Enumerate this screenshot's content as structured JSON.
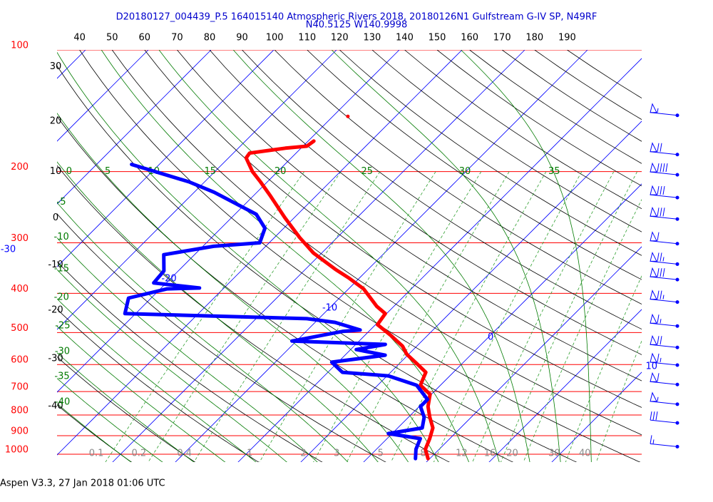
{
  "chart_data": {
    "type": "skewt",
    "title": "D20180127_004439_P.5 164015140 Atmospheric Rivers 2018, 20180126N1 Gulfstream G-IV SP, N49RF",
    "subtitle": "N40.5125 W140.9998",
    "footer": "Aspen V3.3, 27 Jan 2018  01:06 UTC",
    "ylim": [
      100,
      1000
    ],
    "ylog": true,
    "yticks": [
      100,
      200,
      300,
      400,
      500,
      600,
      700,
      800,
      900,
      1000
    ],
    "grid": true,
    "grid_color": "#ff0000",
    "isotherms": [
      -110,
      -100,
      -90,
      -80,
      -70,
      -60,
      -50,
      -40,
      -30,
      -20,
      -10,
      0,
      10,
      20,
      30
    ],
    "isotherm_color": "#0000ff",
    "dry_adiabats": [
      -40,
      -30,
      -20,
      -10,
      0,
      10,
      20,
      30,
      40,
      50,
      60,
      70,
      80,
      90,
      100,
      110,
      120,
      130,
      140,
      150,
      160,
      170,
      180,
      190
    ],
    "dry_adiabat_color": "#000000",
    "moist_adiabats": [
      -40,
      -35,
      -30,
      -25,
      -20,
      -15,
      -10,
      -5,
      0,
      5,
      10,
      15,
      20,
      25,
      30,
      35
    ],
    "moist_adiabat_color": "#007a00",
    "mixing_ratios": [
      0.1,
      0.2,
      0.4,
      1,
      2,
      3,
      5,
      8,
      12,
      16,
      20,
      30,
      40
    ],
    "mixing_ratio_color": "#2e9e2e",
    "series": [
      {
        "color": "#ff0000",
        "x": [
          1025,
          972,
          915,
          861,
          810,
          762,
          711,
          675,
          627,
          597,
          566,
          540,
          508,
          478,
          449,
          431,
          390,
          367,
          349,
          318,
          291,
          260,
          230,
          212,
          200,
          185,
          180,
          175,
          173,
          168,
          160,
          146
        ],
        "values": [
          9.7,
          7.8,
          6.8,
          5.6,
          3.4,
          1.4,
          -0.2,
          -3.2,
          -4.4,
          -7.2,
          -10.3,
          -12.3,
          -15.9,
          -19.7,
          -20.2,
          -22.7,
          -27.6,
          -31.6,
          -35.2,
          -41.3,
          -46.0,
          -51.5,
          -57.2,
          -61.1,
          -64.0,
          -67.2,
          -67.4,
          -62.5,
          -59.4,
          -59.1,
          null,
          -57.6
        ]
      },
      {
        "color": "#0000ff",
        "x": [
          1025,
          972,
          915,
          889,
          861,
          810,
          762,
          732,
          675,
          640,
          627,
          592,
          569,
          551,
          535,
          525,
          497,
          493,
          472,
          462,
          449,
          411,
          390,
          388,
          377,
          352,
          321,
          306,
          300,
          276,
          255,
          225,
          212,
          192
        ],
        "values": [
          7.7,
          6.3,
          5.3,
          -0.6,
          3.9,
          2.5,
          0.2,
          0.2,
          -3.8,
          -9.8,
          -17.7,
          -21.0,
          -13.6,
          -19.1,
          -15.3,
          -30.7,
          -24.2,
          -21.6,
          -26.8,
          -31.9,
          -61.7,
          -63.6,
          -58.9,
          -53.9,
          -62.0,
          -62.3,
          -64.9,
          -58.3,
          -51.5,
          -53.0,
          -56.6,
          -66.8,
          -72.5,
          -84.4
        ]
      }
    ],
    "wind": {
      "color": "#0000ff",
      "x": [
        144,
        180,
        202,
        230,
        260,
        299,
        336,
        367,
        417,
        478,
        540,
        597,
        667,
        746,
        830,
        950
      ],
      "values": [
        55,
        70,
        90,
        80,
        80,
        60,
        75,
        80,
        75,
        65,
        70,
        65,
        60,
        55,
        30,
        15
      ]
    }
  }
}
